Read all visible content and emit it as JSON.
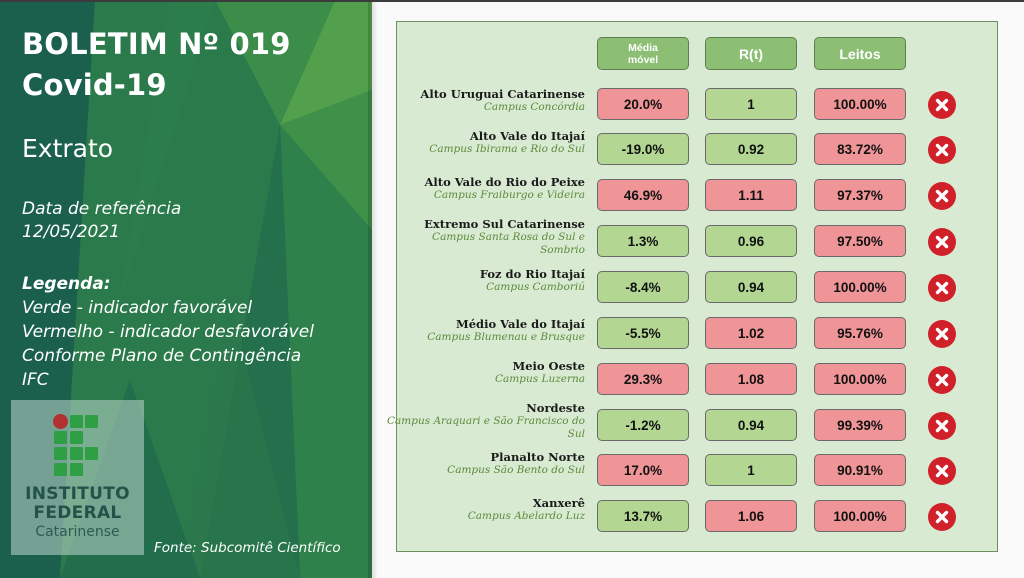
{
  "header": {
    "title_line1": "BOLETIM Nº 019",
    "title_line2": "Covid-19",
    "subtitle": "Extrato"
  },
  "reference": {
    "label": "Data de referência",
    "date": "12/05/2021"
  },
  "legend": {
    "title": "Legenda:",
    "lines": [
      "Verde - indicador favorável",
      "Vermelho - indicador desfavorável",
      "Conforme Plano de Contingência",
      "IFC"
    ]
  },
  "logo": {
    "line1": "INSTITUTO",
    "line2": "FEDERAL",
    "line3": "Catarinense"
  },
  "source": "Fonte: Subcomitê Científico",
  "colors": {
    "favorable": "#b3d793",
    "unfavorable": "#f09597",
    "header_bg": "#8cbf74",
    "panel_bg": "#d9ead3",
    "status_icon": "#d0202a"
  },
  "table": {
    "columns": [
      "Média móvel",
      "R(t)",
      "Leitos"
    ],
    "column_mm_line1": "Média",
    "column_mm_line2": "móvel",
    "rows": [
      {
        "region": "Alto Uruguai Catarinense",
        "campus": "Campus Concórdia",
        "media_movel": "20.0%",
        "media_movel_status": "bad",
        "rt": "1",
        "rt_status": "good",
        "leitos": "100.00%",
        "leitos_status": "bad",
        "overall_icon": "x-circle-icon"
      },
      {
        "region": "Alto Vale do Itajaí",
        "campus": "Campus Ibirama e Rio do Sul",
        "media_movel": "-19.0%",
        "media_movel_status": "good",
        "rt": "0.92",
        "rt_status": "good",
        "leitos": "83.72%",
        "leitos_status": "bad",
        "overall_icon": "x-circle-icon"
      },
      {
        "region": "Alto Vale do Rio do Peixe",
        "campus": "Campus Fraiburgo e Videira",
        "media_movel": "46.9%",
        "media_movel_status": "bad",
        "rt": "1.11",
        "rt_status": "bad",
        "leitos": "97.37%",
        "leitos_status": "bad",
        "overall_icon": "x-circle-icon"
      },
      {
        "region": "Extremo Sul Catarinense",
        "campus": "Campus Santa Rosa do Sul e Sombrio",
        "media_movel": "1.3%",
        "media_movel_status": "good",
        "rt": "0.96",
        "rt_status": "good",
        "leitos": "97.50%",
        "leitos_status": "bad",
        "overall_icon": "x-circle-icon"
      },
      {
        "region": "Foz do Rio Itajaí",
        "campus": "Campus Camboriú",
        "media_movel": "-8.4%",
        "media_movel_status": "good",
        "rt": "0.94",
        "rt_status": "good",
        "leitos": "100.00%",
        "leitos_status": "bad",
        "overall_icon": "x-circle-icon"
      },
      {
        "region": "Médio Vale do Itajaí",
        "campus": "Campus Blumenau e Brusque",
        "media_movel": "-5.5%",
        "media_movel_status": "good",
        "rt": "1.02",
        "rt_status": "bad",
        "leitos": "95.76%",
        "leitos_status": "bad",
        "overall_icon": "x-circle-icon"
      },
      {
        "region": "Meio Oeste",
        "campus": "Campus Luzerna",
        "media_movel": "29.3%",
        "media_movel_status": "bad",
        "rt": "1.08",
        "rt_status": "bad",
        "leitos": "100.00%",
        "leitos_status": "bad",
        "overall_icon": "x-circle-icon"
      },
      {
        "region": "Nordeste",
        "campus": "Campus Araquari e São Francisco do Sul",
        "media_movel": "-1.2%",
        "media_movel_status": "good",
        "rt": "0.94",
        "rt_status": "good",
        "leitos": "99.39%",
        "leitos_status": "bad",
        "overall_icon": "x-circle-icon"
      },
      {
        "region": "Planalto Norte",
        "campus": "Campus São Bento do Sul",
        "media_movel": "17.0%",
        "media_movel_status": "bad",
        "rt": "1",
        "rt_status": "good",
        "leitos": "90.91%",
        "leitos_status": "bad",
        "overall_icon": "x-circle-icon"
      },
      {
        "region": "Xanxerê",
        "campus": "Campus Abelardo Luz",
        "media_movel": "13.7%",
        "media_movel_status": "good",
        "rt": "1.06",
        "rt_status": "bad",
        "leitos": "100.00%",
        "leitos_status": "bad",
        "overall_icon": "x-circle-icon"
      }
    ]
  }
}
